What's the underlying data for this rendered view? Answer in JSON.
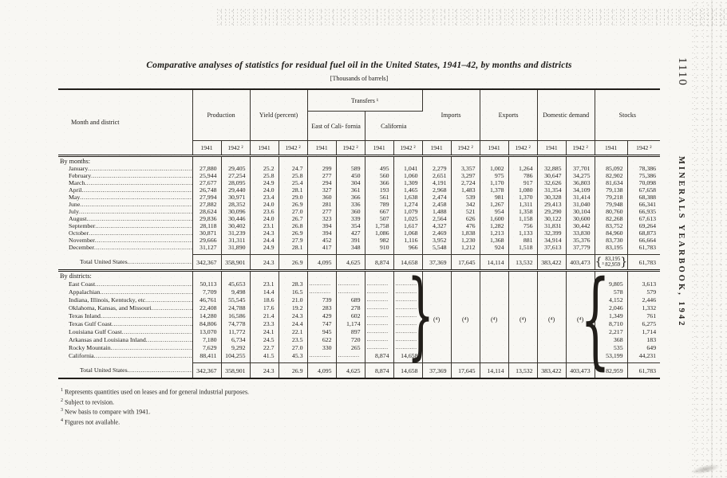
{
  "page": {
    "page_number": "1110",
    "running_header": "MINERALS YEARBOOK, 1942",
    "title": "Comparative analyses of statistics for residual fuel oil in the United States, 1941–42, by months and districts",
    "unit_note": "[Thousands of barrels]"
  },
  "table": {
    "header": {
      "stub": "Month and district",
      "production": "Production",
      "yield": "Yield (percent)",
      "transfers": "Transfers ¹",
      "transfers_east": "East of Cali- fornia",
      "transfers_california": "California",
      "imports": "Imports",
      "exports": "Exports",
      "domestic_demand": "Domestic demand",
      "stocks": "Stocks"
    },
    "year_headers": [
      "1941",
      "1942 ²"
    ],
    "na_marker": "(⁴)",
    "brace_open": "{",
    "brace_close": "}",
    "sections": [
      {
        "key": "months",
        "heading": "By months:",
        "rows": [
          {
            "label": "January",
            "values": [
              "27,880",
              "29,405",
              "25.2",
              "24.7",
              "299",
              "589",
              "495",
              "1,041",
              "2,279",
              "3,357",
              "1,002",
              "1,264",
              "32,885",
              "37,701",
              "85,092",
              "78,386"
            ]
          },
          {
            "label": "February",
            "values": [
              "25,944",
              "27,254",
              "25.8",
              "25.8",
              "277",
              "450",
              "560",
              "1,060",
              "2,651",
              "3,297",
              "975",
              "786",
              "30,647",
              "34,275",
              "82,902",
              "75,386"
            ]
          },
          {
            "label": "March",
            "values": [
              "27,677",
              "28,095",
              "24.9",
              "25.4",
              "294",
              "304",
              "366",
              "1,309",
              "4,191",
              "2,724",
              "1,170",
              "917",
              "32,626",
              "36,803",
              "81,634",
              "70,098"
            ]
          },
          {
            "label": "April",
            "values": [
              "26,748",
              "29,440",
              "24.0",
              "28.1",
              "327",
              "361",
              "193",
              "1,465",
              "2,968",
              "1,483",
              "1,378",
              "1,080",
              "31,354",
              "34,109",
              "79,138",
              "67,658"
            ]
          },
          {
            "label": "May",
            "values": [
              "27,994",
              "30,971",
              "23.4",
              "29.0",
              "360",
              "366",
              "561",
              "1,638",
              "2,474",
              "539",
              "981",
              "1,370",
              "30,328",
              "31,414",
              "79,218",
              "68,388"
            ]
          },
          {
            "label": "June",
            "values": [
              "27,882",
              "28,352",
              "24.0",
              "26.9",
              "281",
              "336",
              "789",
              "1,274",
              "2,458",
              "342",
              "1,267",
              "1,311",
              "29,413",
              "31,040",
              "79,948",
              "66,341"
            ]
          },
          {
            "label": "July",
            "values": [
              "28,624",
              "30,096",
              "23.6",
              "27.0",
              "277",
              "360",
              "667",
              "1,079",
              "1,488",
              "521",
              "954",
              "1,358",
              "29,290",
              "30,104",
              "80,760",
              "66,935"
            ]
          },
          {
            "label": "August",
            "values": [
              "29,836",
              "30,446",
              "24.0",
              "26.7",
              "323",
              "339",
              "507",
              "1,025",
              "2,564",
              "626",
              "1,600",
              "1,158",
              "30,122",
              "30,600",
              "82,268",
              "67,613"
            ]
          },
          {
            "label": "September",
            "values": [
              "28,118",
              "30,402",
              "23.1",
              "26.8",
              "394",
              "354",
              "1,758",
              "1,617",
              "4,327",
              "476",
              "1,282",
              "756",
              "31,831",
              "30,442",
              "83,752",
              "69,264"
            ]
          },
          {
            "label": "October",
            "values": [
              "30,871",
              "31,239",
              "24.3",
              "26.9",
              "394",
              "427",
              "1,086",
              "1,068",
              "2,469",
              "1,838",
              "1,213",
              "1,133",
              "32,399",
              "33,830",
              "84,960",
              "68,873"
            ]
          },
          {
            "label": "November",
            "values": [
              "29,666",
              "31,311",
              "24.4",
              "27.9",
              "452",
              "391",
              "982",
              "1,116",
              "3,952",
              "1,230",
              "1,368",
              "881",
              "34,914",
              "35,376",
              "83,730",
              "66,664"
            ]
          },
          {
            "label": "December",
            "values": [
              "31,127",
              "31,890",
              "24.9",
              "28.1",
              "417",
              "348",
              "910",
              "966",
              "5,548",
              "1,212",
              "924",
              "1,518",
              "37,613",
              "37,779",
              "83,195",
              "61,783"
            ]
          }
        ],
        "total": {
          "label": "Total United States",
          "values": [
            "342,367",
            "358,901",
            "24.3",
            "26.9",
            "4,095",
            "4,625",
            "8,874",
            "14,658",
            "37,369",
            "17,645",
            "14,114",
            "13,532",
            "383,422",
            "403,473"
          ],
          "stocks_1941_stacked": [
            "83,195",
            "³ 82,959"
          ],
          "stocks_1942": "61,783"
        }
      },
      {
        "key": "districts",
        "heading": "By districts:",
        "rows": [
          {
            "label": "East Coast",
            "values": [
              "50,113",
              "45,653",
              "23.1",
              "28.3",
              "........",
              "........",
              "........",
              "........",
              "",
              "",
              "",
              "",
              "",
              "",
              "9,805",
              "3,613"
            ]
          },
          {
            "label": "Appalachian",
            "values": [
              "7,709",
              "9,498",
              "14.4",
              "16.5",
              "........",
              "........",
              "........",
              "........",
              "",
              "",
              "",
              "",
              "",
              "",
              "578",
              "579"
            ]
          },
          {
            "label": "Indiana, Illinois, Kentucky, etc",
            "values": [
              "46,761",
              "55,545",
              "18.6",
              "21.0",
              "739",
              "689",
              "........",
              "........",
              "",
              "",
              "",
              "",
              "",
              "",
              "4,152",
              "2,446"
            ]
          },
          {
            "label": "Oklahoma, Kansas, and Missouri",
            "values": [
              "22,408",
              "24,788",
              "17.6",
              "19.2",
              "283",
              "278",
              "........",
              "........",
              "",
              "",
              "",
              "",
              "",
              "",
              "2,046",
              "1,332"
            ]
          },
          {
            "label": "Texas Inland",
            "values": [
              "14,280",
              "16,586",
              "21.4",
              "24.3",
              "429",
              "602",
              "........",
              "........",
              "",
              "",
              "",
              "",
              "",
              "",
              "1,349",
              "761"
            ]
          },
          {
            "label": "Texas Gulf Coast",
            "values": [
              "84,806",
              "74,778",
              "23.3",
              "24.4",
              "747",
              "1,174",
              "........",
              "........",
              "",
              "",
              "",
              "",
              "",
              "",
              "8,710",
              "6,275"
            ]
          },
          {
            "label": "Louisiana Gulf Coast",
            "values": [
              "13,070",
              "11,772",
              "24.1",
              "22.1",
              "945",
              "897",
              "........",
              "........",
              "",
              "",
              "",
              "",
              "",
              "",
              "2,217",
              "1,714"
            ]
          },
          {
            "label": "Arkansas and Louisiana Inland",
            "values": [
              "7,180",
              "6,734",
              "24.5",
              "23.5",
              "622",
              "720",
              "........",
              "........",
              "",
              "",
              "",
              "",
              "",
              "",
              "368",
              "183"
            ]
          },
          {
            "label": "Rocky Mountain",
            "values": [
              "7,629",
              "9,292",
              "22.7",
              "27.0",
              "330",
              "265",
              "........",
              "........",
              "",
              "",
              "",
              "",
              "",
              "",
              "535",
              "649"
            ]
          },
          {
            "label": "California",
            "values": [
              "88,411",
              "104,255",
              "41.5",
              "45.3",
              "........",
              "........",
              "8,874",
              "14,658",
              "",
              "",
              "",
              "",
              "",
              "",
              "53,199",
              "44,231"
            ]
          }
        ],
        "total": {
          "label": "Total United States",
          "values": [
            "342,367",
            "358,901",
            "24.3",
            "26.9",
            "4,095",
            "4,625",
            "8,874",
            "14,658",
            "37,369",
            "17,645",
            "14,114",
            "13,532",
            "383,422",
            "403,473",
            "³ 82,959",
            "61,783"
          ]
        }
      }
    ]
  },
  "footnotes": [
    {
      "mark": "1",
      "text": "Represents quantities used on leases and for general industrial purposes."
    },
    {
      "mark": "2",
      "text": "Subject to revision."
    },
    {
      "mark": "3",
      "text": "New basis to compare with 1941."
    },
    {
      "mark": "4",
      "text": "Figures not available."
    }
  ]
}
